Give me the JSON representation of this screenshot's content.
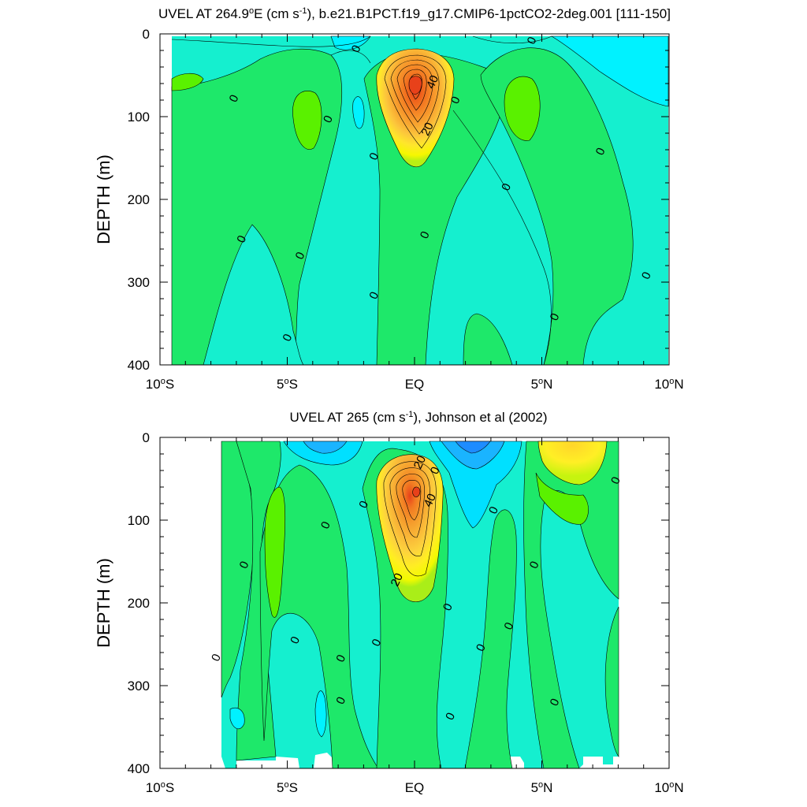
{
  "chart_data": [
    {
      "type": "contour",
      "title": "UVEL AT 264.9",
      "title_sup": "o",
      "title_mid": "E (cm s",
      "title_sup2": "-1",
      "title_end": "), b.e21.B1PCT.f19_g17.CMIP6-1pctCO2-2deg.001 [111-150]",
      "ylabel": "DEPTH (m)",
      "xlim": [
        -10,
        10
      ],
      "ylim": [
        400,
        0
      ],
      "y_ticks": [
        {
          "value": 0,
          "label": "0"
        },
        {
          "value": 100,
          "label": "100"
        },
        {
          "value": 200,
          "label": "200"
        },
        {
          "value": 300,
          "label": "300"
        },
        {
          "value": 400,
          "label": "400"
        }
      ],
      "x_ticks": [
        {
          "value": -10,
          "label": "10",
          "deg": "o",
          "hemi": "S"
        },
        {
          "value": -5,
          "label": "5",
          "deg": "o",
          "hemi": "S"
        },
        {
          "value": 0,
          "label": "EQ",
          "deg": "",
          "hemi": ""
        },
        {
          "value": 5,
          "label": "5",
          "deg": "o",
          "hemi": "N"
        },
        {
          "value": 10,
          "label": "10",
          "deg": "o",
          "hemi": "N"
        }
      ],
      "contour_interval": 5,
      "core": {
        "lat": 0,
        "depth": 65,
        "max_speed": 50
      },
      "contour_labels": [
        {
          "text": "0",
          "lat": -2.3,
          "depth": 18
        },
        {
          "text": "0",
          "lat": 4.6,
          "depth": 8
        },
        {
          "text": "0",
          "lat": -7.1,
          "depth": 78
        },
        {
          "text": "0",
          "lat": -3.4,
          "depth": 103
        },
        {
          "text": "0",
          "lat": 1.6,
          "depth": 80
        },
        {
          "text": "0",
          "lat": -1.6,
          "depth": 148
        },
        {
          "text": "0",
          "lat": 7.3,
          "depth": 142
        },
        {
          "text": "0",
          "lat": 3.6,
          "depth": 185
        },
        {
          "text": "0",
          "lat": -6.8,
          "depth": 248
        },
        {
          "text": "0",
          "lat": -4.5,
          "depth": 268
        },
        {
          "text": "0",
          "lat": 0.4,
          "depth": 243
        },
        {
          "text": "0",
          "lat": 9.1,
          "depth": 292
        },
        {
          "text": "0",
          "lat": -1.6,
          "depth": 316
        },
        {
          "text": "0",
          "lat": 5.5,
          "depth": 342
        },
        {
          "text": "0",
          "lat": -5.0,
          "depth": 367
        },
        {
          "text": "40",
          "lat": 0.7,
          "depth": 58
        },
        {
          "text": "20",
          "lat": 0.5,
          "depth": 115
        }
      ]
    },
    {
      "type": "contour",
      "title": "UVEL AT 265 (cm s",
      "title_sup": "-1",
      "title_end": "), Johnson et al (2002)",
      "ylabel": "DEPTH (m)",
      "xlim": [
        -10,
        10
      ],
      "ylim": [
        400,
        0
      ],
      "y_ticks": [
        {
          "value": 0,
          "label": "0"
        },
        {
          "value": 100,
          "label": "100"
        },
        {
          "value": 200,
          "label": "200"
        },
        {
          "value": 300,
          "label": "300"
        },
        {
          "value": 400,
          "label": "400"
        }
      ],
      "x_ticks": [
        {
          "value": -10,
          "label": "10",
          "deg": "o",
          "hemi": "S"
        },
        {
          "value": -5,
          "label": "5",
          "deg": "o",
          "hemi": "S"
        },
        {
          "value": 0,
          "label": "EQ",
          "deg": "",
          "hemi": ""
        },
        {
          "value": 5,
          "label": "5",
          "deg": "o",
          "hemi": "N"
        },
        {
          "value": 10,
          "label": "10",
          "deg": "o",
          "hemi": "N"
        }
      ],
      "data_lat_range": [
        -8,
        8
      ],
      "contour_interval": 5,
      "core": {
        "lat": -0.2,
        "depth": 68,
        "max_speed": 45
      },
      "contour_labels": [
        {
          "text": "20",
          "lat": 0.2,
          "depth": 30
        },
        {
          "text": "0",
          "lat": 0.8,
          "depth": 40
        },
        {
          "text": "40",
          "lat": 0.6,
          "depth": 76
        },
        {
          "text": "0",
          "lat": -2.0,
          "depth": 81
        },
        {
          "text": "0",
          "lat": 3.1,
          "depth": 88
        },
        {
          "text": "0",
          "lat": 7.9,
          "depth": 52
        },
        {
          "text": "0",
          "lat": -3.5,
          "depth": 106
        },
        {
          "text": "0",
          "lat": -6.7,
          "depth": 154
        },
        {
          "text": "0",
          "lat": 4.7,
          "depth": 154
        },
        {
          "text": "20",
          "lat": -0.7,
          "depth": 172
        },
        {
          "text": "0",
          "lat": 1.3,
          "depth": 205
        },
        {
          "text": "0",
          "lat": 3.7,
          "depth": 228
        },
        {
          "text": "0",
          "lat": -4.7,
          "depth": 245
        },
        {
          "text": "0",
          "lat": -1.5,
          "depth": 248
        },
        {
          "text": "0",
          "lat": 2.6,
          "depth": 254
        },
        {
          "text": "0",
          "lat": -7.8,
          "depth": 266
        },
        {
          "text": "0",
          "lat": -2.9,
          "depth": 267
        },
        {
          "text": "0",
          "lat": -2.9,
          "depth": 318
        },
        {
          "text": "0",
          "lat": 5.5,
          "depth": 320
        },
        {
          "text": "0",
          "lat": 1.4,
          "depth": 337
        }
      ]
    }
  ]
}
